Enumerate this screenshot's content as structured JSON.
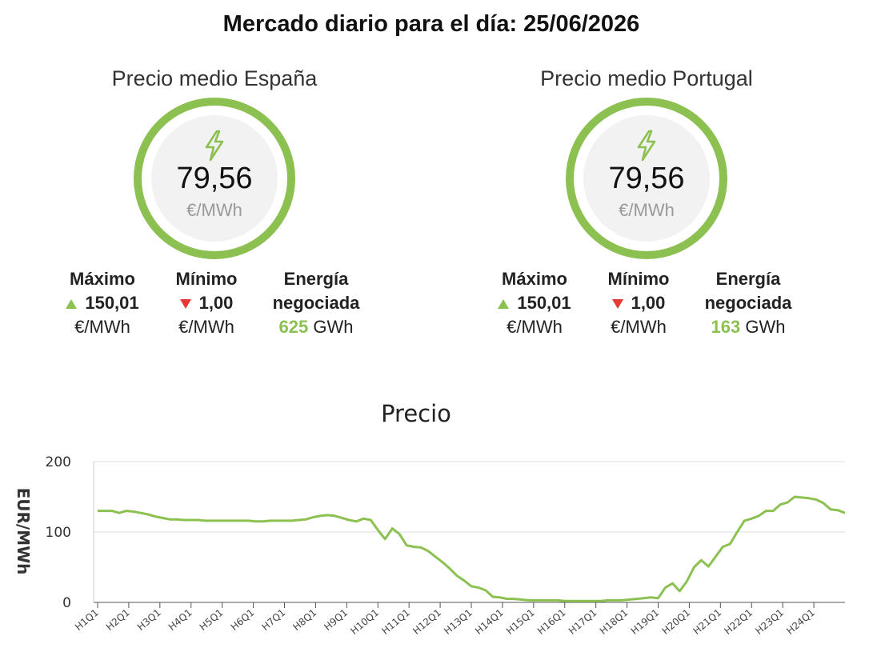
{
  "header": {
    "title": "Mercado diario para el día: 25/06/2026"
  },
  "accent_color": "#8cc152",
  "down_color": "#e53935",
  "icons": {
    "gauge": "lightning-bolt-icon",
    "max": "triangle-up-icon",
    "min": "triangle-down-icon"
  },
  "spain": {
    "title": "Precio medio España",
    "avg_value": "79,56",
    "avg_unit": "€/MWh",
    "max_label": "Máximo",
    "max_value": "150,01",
    "max_unit": "€/MWh",
    "min_label": "Mínimo",
    "min_value": "1,00",
    "min_unit": "€/MWh",
    "energy_label_1": "Energía",
    "energy_label_2": "negociada",
    "energy_value": "625",
    "energy_unit": "GWh"
  },
  "portugal": {
    "title": "Precio medio Portugal",
    "avg_value": "79,56",
    "avg_unit": "€/MWh",
    "max_label": "Máximo",
    "max_value": "150,01",
    "max_unit": "€/MWh",
    "min_label": "Mínimo",
    "min_value": "1,00",
    "min_unit": "€/MWh",
    "energy_label_1": "Energía",
    "energy_label_2": "negociada",
    "energy_value": "163",
    "energy_unit": "GWh"
  },
  "chart_data": {
    "type": "line",
    "title": "Precio",
    "xlabel": "",
    "ylabel": "EUR/MWh",
    "ylim": [
      0,
      200
    ],
    "yticks": [
      0,
      100,
      200
    ],
    "grid": true,
    "legend": "none",
    "line_color": "#8cc152",
    "xtick_labels": [
      "H1Q1",
      "H2Q1",
      "H3Q1",
      "H4Q1",
      "H5Q1",
      "H6Q1",
      "H7Q1",
      "H8Q1",
      "H9Q1",
      "H10Q1",
      "H11Q1",
      "H12Q1",
      "H13Q1",
      "H14Q1",
      "H15Q1",
      "H16Q1",
      "H17Q1",
      "H18Q1",
      "H19Q1",
      "H20Q1",
      "H21Q1",
      "H22Q1",
      "H23Q1",
      "H24Q1"
    ],
    "values": [
      130,
      130,
      130,
      127,
      130,
      129,
      127,
      125,
      122,
      120,
      118,
      118,
      117,
      117,
      117,
      116,
      116,
      116,
      116,
      116,
      116,
      116,
      115,
      115,
      116,
      116,
      116,
      116,
      117,
      118,
      121,
      123,
      124,
      123,
      120,
      117,
      115,
      119,
      117,
      103,
      90,
      105,
      97,
      81,
      79,
      78,
      73,
      65,
      57,
      48,
      38,
      31,
      23,
      21,
      17,
      8,
      7,
      5,
      5,
      4,
      3,
      3,
      3,
      3,
      3,
      2,
      2,
      2,
      2,
      2,
      2,
      3,
      3,
      3,
      4,
      5,
      6,
      7,
      6,
      21,
      27,
      16,
      30,
      50,
      60,
      51,
      65,
      79,
      83,
      100,
      116,
      119,
      123,
      130,
      130,
      139,
      142,
      150,
      149,
      148,
      146,
      141,
      132,
      131,
      127
    ]
  }
}
